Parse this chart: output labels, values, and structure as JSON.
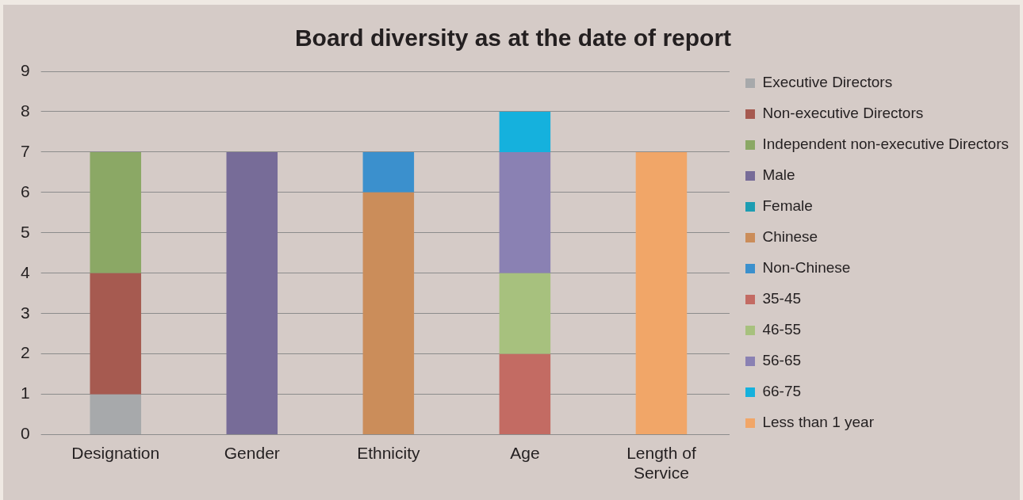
{
  "chart_data": {
    "type": "bar",
    "title": "Board diversity as at the date of report",
    "stacked": true,
    "categories": [
      "Designation",
      "Gender",
      "Ethnicity",
      "Age",
      "Length of Service"
    ],
    "ylim": [
      0,
      9
    ],
    "yticks": [
      0,
      1,
      2,
      3,
      4,
      5,
      6,
      7,
      8,
      9
    ],
    "grid": "y",
    "legend": "right",
    "series": [
      {
        "name": "Executive Directors",
        "color": "#a7a9ab",
        "values": [
          1,
          null,
          null,
          null,
          null
        ]
      },
      {
        "name": "Non-executive Directors",
        "color": "#a65a50",
        "values": [
          3,
          null,
          null,
          null,
          null
        ]
      },
      {
        "name": "Independent non-executive Directors",
        "color": "#8ba865",
        "values": [
          3,
          null,
          null,
          null,
          null
        ]
      },
      {
        "name": "Male",
        "color": "#776c98",
        "values": [
          null,
          7,
          null,
          null,
          null
        ]
      },
      {
        "name": "Female",
        "color": "#1d9db2",
        "values": [
          null,
          null,
          null,
          null,
          null
        ]
      },
      {
        "name": "Chinese",
        "color": "#cb8d5a",
        "values": [
          null,
          null,
          6,
          null,
          null
        ]
      },
      {
        "name": "Non-Chinese",
        "color": "#3b90cd",
        "values": [
          null,
          null,
          1,
          null,
          null
        ]
      },
      {
        "name": "35-45",
        "color": "#c36b63",
        "values": [
          null,
          null,
          null,
          2,
          null
        ]
      },
      {
        "name": "46-55",
        "color": "#a7c17e",
        "values": [
          null,
          null,
          null,
          2,
          null
        ]
      },
      {
        "name": "56-65",
        "color": "#8a81b3",
        "values": [
          null,
          null,
          null,
          3,
          null
        ]
      },
      {
        "name": "66-75",
        "color": "#15b1dd",
        "values": [
          null,
          null,
          null,
          1,
          null
        ]
      },
      {
        "name": "Less than 1 year",
        "color": "#f1a668",
        "values": [
          null,
          null,
          null,
          null,
          7
        ]
      }
    ]
  }
}
